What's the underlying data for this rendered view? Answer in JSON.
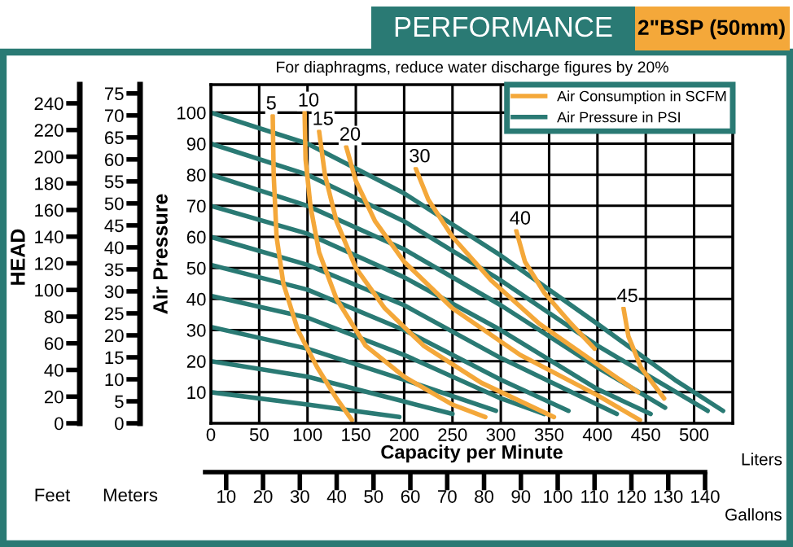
{
  "chart_data": {
    "type": "line",
    "title": "PERFORMANCE",
    "subtitle": "2\"BSP (50mm)",
    "xlabel": "Capacity per Minute",
    "ylabel": "Air Pressure",
    "y2label": "Meters",
    "y3label": "Feet",
    "x2label": "Gallons",
    "annotations": [
      "Air Consumption in SCFM",
      "Air Pressure in PSI",
      "For diaphragms, reduce water discharge figures by 20%",
      "HEAD",
      "Liters"
    ],
    "xlim": [
      0,
      540
    ],
    "xticks": [
      0,
      50,
      100,
      150,
      200,
      250,
      300,
      350,
      400,
      450,
      500
    ],
    "ylim": [
      0,
      109
    ],
    "yticks": [
      10,
      20,
      30,
      40,
      50,
      60,
      70,
      80,
      90,
      100
    ],
    "y2lim": [
      0,
      77
    ],
    "y2ticks": [
      0,
      5,
      10,
      15,
      20,
      25,
      30,
      35,
      40,
      45,
      50,
      55,
      60,
      65,
      70,
      75
    ],
    "y3lim": [
      0,
      254
    ],
    "y3ticks": [
      0,
      20,
      40,
      60,
      80,
      100,
      120,
      140,
      160,
      180,
      200,
      220,
      240
    ],
    "x2lim": [
      4.3,
      140
    ],
    "x2ticks": [
      10,
      20,
      30,
      40,
      50,
      60,
      70,
      80,
      90,
      100,
      110,
      120,
      130,
      140
    ],
    "grid": true,
    "legend": "top right",
    "series": [
      {
        "color": "#2a7a74",
        "x": [
          0,
          100,
          200,
          300,
          400,
          480,
          530
        ],
        "values": [
          100,
          90,
          74,
          54,
          32,
          14,
          4
        ]
      },
      {
        "color": "#2a7a74",
        "x": [
          0,
          100,
          200,
          300,
          400,
          514
        ],
        "values": [
          90,
          80,
          65,
          46,
          25,
          4
        ]
      },
      {
        "color": "#2a7a74",
        "x": [
          0,
          100,
          200,
          300,
          400,
          470
        ],
        "values": [
          80,
          70,
          56,
          38,
          18,
          5
        ]
      },
      {
        "color": "#2a7a74",
        "x": [
          0,
          100,
          200,
          300,
          400,
          455
        ],
        "values": [
          70,
          61,
          47,
          30,
          11,
          3
        ]
      },
      {
        "color": "#2a7a74",
        "x": [
          0,
          100,
          200,
          300,
          420
        ],
        "values": [
          60,
          51,
          38,
          21,
          3
        ]
      },
      {
        "color": "#2a7a74",
        "x": [
          0,
          100,
          200,
          300,
          370
        ],
        "values": [
          51,
          43,
          30,
          14,
          4
        ]
      },
      {
        "color": "#2a7a74",
        "x": [
          0,
          100,
          200,
          300,
          345
        ],
        "values": [
          41,
          34,
          22,
          8,
          3
        ]
      },
      {
        "color": "#2a7a74",
        "x": [
          0,
          100,
          200,
          295
        ],
        "values": [
          31,
          24,
          14,
          4
        ]
      },
      {
        "color": "#2a7a74",
        "x": [
          0,
          100,
          200,
          250
        ],
        "values": [
          20,
          15,
          7,
          3
        ]
      },
      {
        "color": "#2a7a74",
        "x": [
          0,
          100,
          195
        ],
        "values": [
          10,
          6,
          2
        ]
      },
      {
        "name": "5",
        "color": "#f4a83a",
        "x": [
          64,
          65,
          68,
          75,
          90,
          110,
          130,
          146
        ],
        "values": [
          99,
          80,
          60,
          45,
          30,
          18,
          8,
          1
        ]
      },
      {
        "name": "10",
        "color": "#f4a83a",
        "x": [
          97,
          98,
          103,
          112,
          130,
          160,
          200,
          250,
          284
        ],
        "values": [
          100,
          85,
          70,
          55,
          40,
          25,
          15,
          6,
          2
        ]
      },
      {
        "name": "15",
        "color": "#f4a83a",
        "x": [
          112,
          118,
          130,
          150,
          180,
          220,
          280,
          355
        ],
        "values": [
          94,
          80,
          65,
          50,
          37,
          25,
          13,
          2
        ]
      },
      {
        "name": "20",
        "color": "#f4a83a",
        "x": [
          140,
          150,
          170,
          200,
          250,
          320,
          400,
          444
        ],
        "values": [
          89,
          78,
          65,
          52,
          37,
          22,
          9,
          1
        ]
      },
      {
        "name": "30",
        "color": "#f4a83a",
        "x": [
          212,
          225,
          250,
          290,
          340,
          400,
          442
        ],
        "values": [
          82,
          72,
          60,
          46,
          32,
          19,
          10
        ]
      },
      {
        "name": "40",
        "color": "#f4a83a",
        "x": [
          316,
          325,
          345,
          370,
          397
        ],
        "values": [
          62,
          52,
          42,
          33,
          24
        ]
      },
      {
        "name": "45",
        "color": "#f4a83a",
        "x": [
          427,
          432,
          445,
          469
        ],
        "values": [
          37,
          28,
          18,
          8
        ]
      }
    ]
  }
}
